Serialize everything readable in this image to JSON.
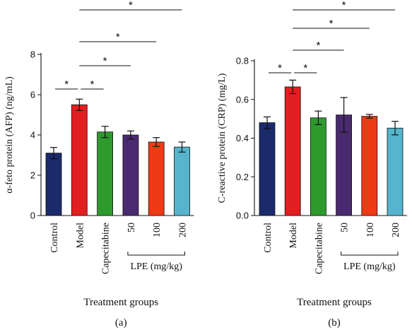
{
  "chart_data": [
    {
      "type": "bar",
      "panel_label": "(a)",
      "categories": [
        "Control",
        "Model",
        "Capecitabine",
        "50",
        "100",
        "200"
      ],
      "values": [
        3.1,
        5.5,
        4.15,
        4.0,
        3.65,
        3.4
      ],
      "errors": [
        0.28,
        0.28,
        0.28,
        0.2,
        0.22,
        0.25
      ],
      "colors": [
        "#1b2a6b",
        "#e02020",
        "#2e9a2e",
        "#4a2a6e",
        "#ee3a14",
        "#56b4cc"
      ],
      "ylabel": "α-feto protein (AFP) (ng/mL)",
      "xlabel": "Treatment groups",
      "group_label": "LPE (mg/kg)",
      "group_members": [
        "50",
        "100",
        "200"
      ],
      "ylim": [
        0,
        8
      ],
      "yticks": [
        0,
        2,
        4,
        6,
        8
      ],
      "significance": [
        {
          "from": "Control",
          "to": "Model",
          "label": "*"
        },
        {
          "from": "Model",
          "to": "Capecitabine",
          "label": "*"
        },
        {
          "from": "Model",
          "to": "50",
          "label": "*"
        },
        {
          "from": "Model",
          "to": "100",
          "label": "*"
        },
        {
          "from": "Model",
          "to": "200",
          "label": "*"
        }
      ]
    },
    {
      "type": "bar",
      "panel_label": "(b)",
      "categories": [
        "Control",
        "Model",
        "Capecitabine",
        "50",
        "100",
        "200"
      ],
      "values": [
        0.48,
        0.665,
        0.505,
        0.52,
        0.513,
        0.452
      ],
      "errors": [
        0.03,
        0.035,
        0.035,
        0.09,
        0.01,
        0.035
      ],
      "colors": [
        "#1b2a6b",
        "#e02020",
        "#2e9a2e",
        "#4a2a6e",
        "#ee3a14",
        "#56b4cc"
      ],
      "ylabel": "C-reactive protein (CRP) (mg/L)",
      "xlabel": "Treatment groups",
      "group_label": "LPE (mg/kg)",
      "group_members": [
        "50",
        "100",
        "200"
      ],
      "ylim": [
        0,
        0.8
      ],
      "yticks": [
        0.0,
        0.2,
        0.4,
        0.6,
        0.8
      ],
      "significance": [
        {
          "from": "Control",
          "to": "Model",
          "label": "*"
        },
        {
          "from": "Model",
          "to": "Capecitabine",
          "label": "*"
        },
        {
          "from": "Model",
          "to": "50",
          "label": "*"
        },
        {
          "from": "Model",
          "to": "100",
          "label": "*"
        },
        {
          "from": "Model",
          "to": "200",
          "label": "*"
        }
      ]
    }
  ]
}
